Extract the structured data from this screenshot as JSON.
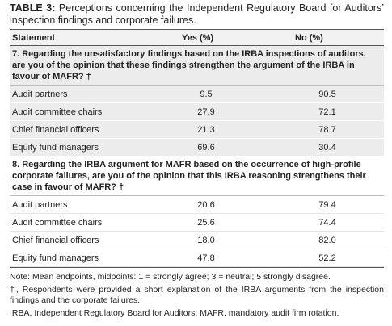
{
  "caption": {
    "label": "TABLE 3:",
    "text": "Perceptions concerning the Independent Regulatory Board for Auditors’ inspection findings and corporate failures."
  },
  "table": {
    "header": [
      "Statement",
      "Yes (%)",
      "No (%)"
    ],
    "sections": [
      {
        "question": "7. Regarding the unsatisfactory findings based on the IRBA inspections of auditors, are you of the opinion that these findings strengthen the argument of the IRBA in favour of MAFR? †",
        "rows": [
          [
            "Audit partners",
            "9.5",
            "90.5"
          ],
          [
            "Audit committee chairs",
            "27.9",
            "72.1"
          ],
          [
            "Chief financial officers",
            "21.3",
            "78.7"
          ],
          [
            "Equity fund managers",
            "69.6",
            "30.4"
          ]
        ]
      },
      {
        "question": "8. Regarding the IRBA argument for MAFR based on the occurrence of high-profile corporate failures, are you of the opinion that this IRBA reasoning strengthens their case in favour of MAFR? †",
        "rows": [
          [
            "Audit partners",
            "20.6",
            "79.4"
          ],
          [
            "Audit committee chairs",
            "25.6",
            "74.4"
          ],
          [
            "Chief financial officers",
            "18.0",
            "82.0"
          ],
          [
            "Equity fund managers",
            "47.8",
            "52.2"
          ]
        ]
      }
    ]
  },
  "notes": [
    "Note: Mean endpoints, midpoints: 1 = strongly agree; 3 = neutral; 5 strongly disagree.",
    "†, Respondents were provided a short explanation of the IRBA arguments from the inspection findings and the corporate failures.",
    "IRBA, Independent Regulatory Board for Auditors; MAFR, mandatory audit firm rotation."
  ]
}
